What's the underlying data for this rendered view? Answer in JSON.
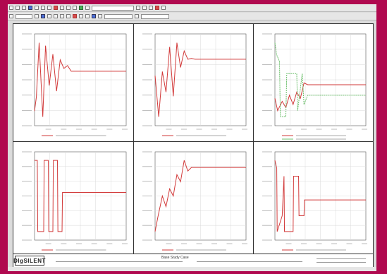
{
  "app": {
    "logo": "DIgSILENT",
    "report_title": "Base Study Case"
  },
  "colors": {
    "primary": "#d23a3a",
    "secondary": "#6cbf6c",
    "grid": "#d9d9d9",
    "background": "#b0094f"
  },
  "chart_data": [
    {
      "type": "line",
      "series": [
        {
          "x": [
            0,
            0.2,
            0.5,
            0.9,
            1.2,
            1.6,
            2.0,
            2.4,
            2.8,
            3.2,
            3.6,
            4.0,
            4.6,
            5.5,
            7,
            10
          ],
          "values": [
            0.3,
            0.55,
            1.5,
            0.2,
            1.45,
            0.75,
            1.3,
            0.65,
            1.2,
            1.05,
            1.1,
            1.0,
            1.0,
            1.0,
            1.0,
            1.0
          ]
        }
      ]
    },
    {
      "type": "line",
      "series": [
        {
          "x": [
            0,
            0.4,
            0.8,
            1.2,
            1.6,
            2.0,
            2.4,
            2.8,
            3.2,
            3.6,
            4.0,
            4.4,
            5,
            6,
            10
          ],
          "values": [
            0.6,
            -0.4,
            0.7,
            0.2,
            1.3,
            0.1,
            1.4,
            0.8,
            1.2,
            1.0,
            1.02,
            1.0,
            1.0,
            1.0,
            1.0
          ]
        }
      ]
    },
    {
      "type": "line",
      "series": [
        {
          "x": [
            0,
            0.3,
            0.8,
            1.2,
            1.6,
            2.0,
            2.4,
            2.8,
            3.2,
            3.6,
            4.0,
            5,
            10
          ],
          "values": [
            0.5,
            0.3,
            0.45,
            0.35,
            0.55,
            0.4,
            0.6,
            0.5,
            0.75,
            0.72,
            0.72,
            0.72,
            0.72
          ]
        },
        {
          "x": [
            0,
            0.2,
            0.5,
            0.6,
            1.2,
            1.3,
            2.4,
            2.5,
            3.0,
            3.2,
            3.6,
            4.0,
            5,
            10
          ],
          "values": [
            1.4,
            1.2,
            1.1,
            0.2,
            0.2,
            0.9,
            0.9,
            0.3,
            0.9,
            0.4,
            0.55,
            0.55,
            0.55,
            0.55
          ]
        }
      ]
    },
    {
      "type": "line",
      "series": [
        {
          "x": [
            0,
            0.3,
            0.35,
            1.0,
            1.05,
            1.5,
            1.55,
            2.0,
            2.05,
            2.5,
            2.55,
            3.0,
            3.05,
            4,
            10
          ],
          "values": [
            1.0,
            1.0,
            0.0,
            0.0,
            1.0,
            1.0,
            0.0,
            0.0,
            1.0,
            1.0,
            0.0,
            0.0,
            0.55,
            0.55,
            0.55
          ]
        }
      ]
    },
    {
      "type": "line",
      "series": [
        {
          "x": [
            0,
            0.3,
            0.8,
            1.2,
            1.6,
            2.0,
            2.4,
            2.8,
            3.2,
            3.6,
            4.0,
            4.6,
            5.5,
            10
          ],
          "values": [
            0.0,
            0.2,
            0.5,
            0.35,
            0.6,
            0.5,
            0.8,
            0.7,
            1.0,
            0.85,
            0.9,
            0.9,
            0.9,
            0.9
          ]
        }
      ]
    },
    {
      "type": "line",
      "series": [
        {
          "x": [
            0,
            0.2,
            0.25,
            0.8,
            1.0,
            1.05,
            2.0,
            2.05,
            2.6,
            2.65,
            3.2,
            3.25,
            4,
            10
          ],
          "values": [
            1.0,
            0.9,
            0.1,
            0.3,
            0.8,
            0.1,
            0.1,
            0.8,
            0.8,
            0.3,
            0.3,
            0.5,
            0.5,
            0.5
          ]
        }
      ]
    }
  ]
}
